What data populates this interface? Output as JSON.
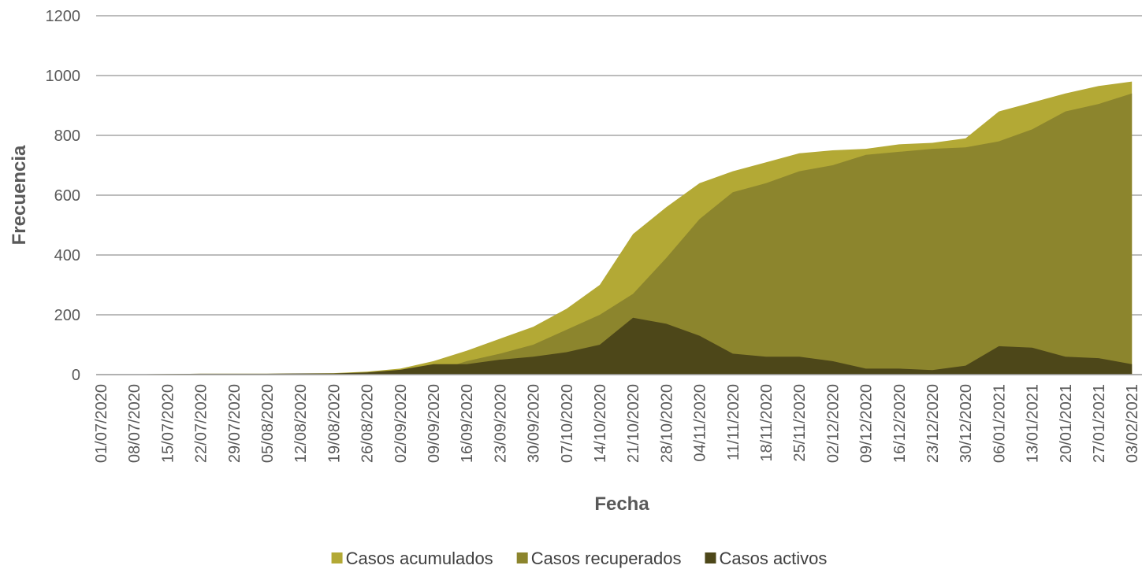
{
  "chart_data": {
    "type": "area",
    "y_label": "Frecuencia",
    "x_label": "Fecha",
    "categories": [
      "01/07/2020",
      "08/07/2020",
      "15/07/2020",
      "22/07/2020",
      "29/07/2020",
      "05/08/2020",
      "12/08/2020",
      "19/08/2020",
      "26/08/2020",
      "02/09/2020",
      "09/09/2020",
      "16/09/2020",
      "23/09/2020",
      "30/09/2020",
      "07/10/2020",
      "14/10/2020",
      "21/10/2020",
      "28/10/2020",
      "04/11/2020",
      "11/11/2020",
      "18/11/2020",
      "25/11/2020",
      "02/12/2020",
      "09/12/2020",
      "16/12/2020",
      "23/12/2020",
      "30/12/2020",
      "06/01/2021",
      "13/01/2021",
      "20/01/2021",
      "27/01/2021",
      "03/02/2021"
    ],
    "series": [
      {
        "name": "Casos acumulados",
        "color": "#b3a935",
        "values": [
          0,
          1,
          2,
          3,
          3,
          3,
          4,
          5,
          10,
          20,
          45,
          80,
          120,
          160,
          220,
          300,
          470,
          560,
          640,
          680,
          710,
          740,
          750,
          755,
          770,
          775,
          790,
          880,
          910,
          940,
          965,
          980
        ]
      },
      {
        "name": "Casos recuperados",
        "color": "#8c852d",
        "values": [
          0,
          0,
          0,
          0,
          0,
          0,
          0,
          1,
          3,
          4,
          10,
          45,
          70,
          100,
          150,
          200,
          270,
          390,
          520,
          610,
          640,
          680,
          700,
          735,
          745,
          755,
          760,
          780,
          820,
          880,
          905,
          940
        ]
      },
      {
        "name": "Casos activos",
        "color": "#4d4719",
        "values": [
          0,
          1,
          2,
          3,
          3,
          3,
          4,
          4,
          7,
          16,
          35,
          35,
          50,
          60,
          75,
          100,
          190,
          170,
          130,
          70,
          60,
          60,
          45,
          20,
          20,
          15,
          30,
          95,
          90,
          60,
          55,
          35
        ]
      }
    ],
    "ylim": [
      0,
      1200
    ],
    "yticks": [
      0,
      200,
      400,
      600,
      800,
      1000,
      1200
    ],
    "grid": true,
    "legend": "bottom"
  }
}
